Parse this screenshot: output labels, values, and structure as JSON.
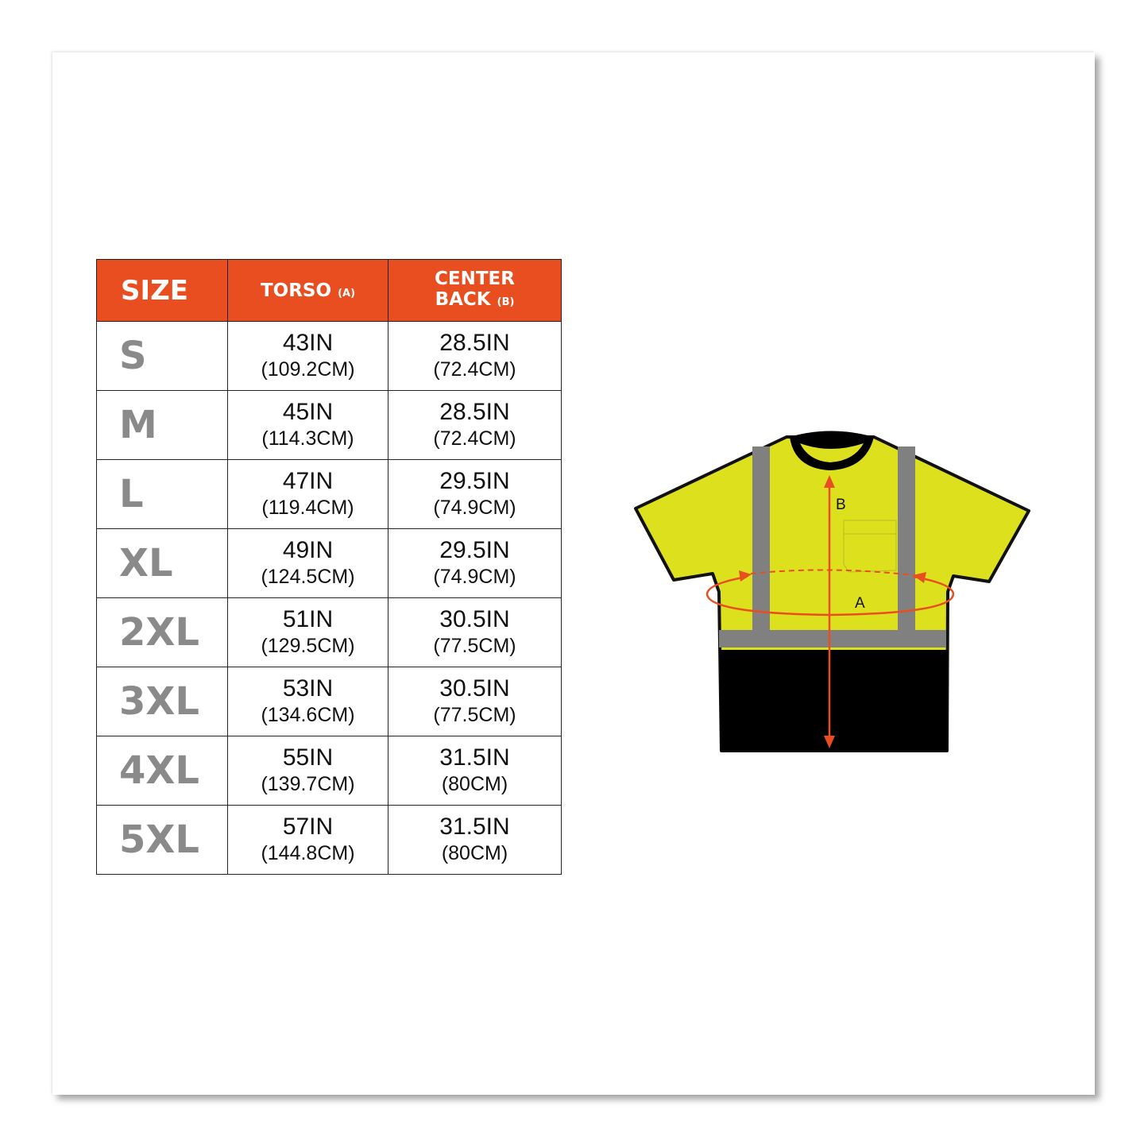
{
  "table": {
    "headers": {
      "size": "SIZE",
      "torso": "TORSO",
      "torso_tag": "(A)",
      "center_back_line1": "CENTER",
      "center_back_line2": "BACK",
      "center_back_tag": "(B)"
    },
    "rows": [
      {
        "size": "S",
        "torso_in": "43IN",
        "torso_cm": "(109.2CM)",
        "back_in": "28.5IN",
        "back_cm": "(72.4CM)"
      },
      {
        "size": "M",
        "torso_in": "45IN",
        "torso_cm": "(114.3CM)",
        "back_in": "28.5IN",
        "back_cm": "(72.4CM)"
      },
      {
        "size": "L",
        "torso_in": "47IN",
        "torso_cm": "(119.4CM)",
        "back_in": "29.5IN",
        "back_cm": "(74.9CM)"
      },
      {
        "size": "XL",
        "torso_in": "49IN",
        "torso_cm": "(124.5CM)",
        "back_in": "29.5IN",
        "back_cm": "(74.9CM)"
      },
      {
        "size": "2XL",
        "torso_in": "51IN",
        "torso_cm": "(129.5CM)",
        "back_in": "30.5IN",
        "back_cm": "(77.5CM)"
      },
      {
        "size": "3XL",
        "torso_in": "53IN",
        "torso_cm": "(134.6CM)",
        "back_in": "30.5IN",
        "back_cm": "(77.5CM)"
      },
      {
        "size": "4XL",
        "torso_in": "55IN",
        "torso_cm": "(139.7CM)",
        "back_in": "31.5IN",
        "back_cm": "(80CM)"
      },
      {
        "size": "5XL",
        "torso_in": "57IN",
        "torso_cm": "(144.8CM)",
        "back_in": "31.5IN",
        "back_cm": "(80CM)"
      }
    ]
  },
  "diagram": {
    "label_a": "A",
    "label_b": "B"
  },
  "colors": {
    "header": "#e84e1f",
    "size_text": "#8a8a8a",
    "shirt_yellow": "#dde01c",
    "reflective_gray": "#808080",
    "arrow": "#e84e1f"
  }
}
